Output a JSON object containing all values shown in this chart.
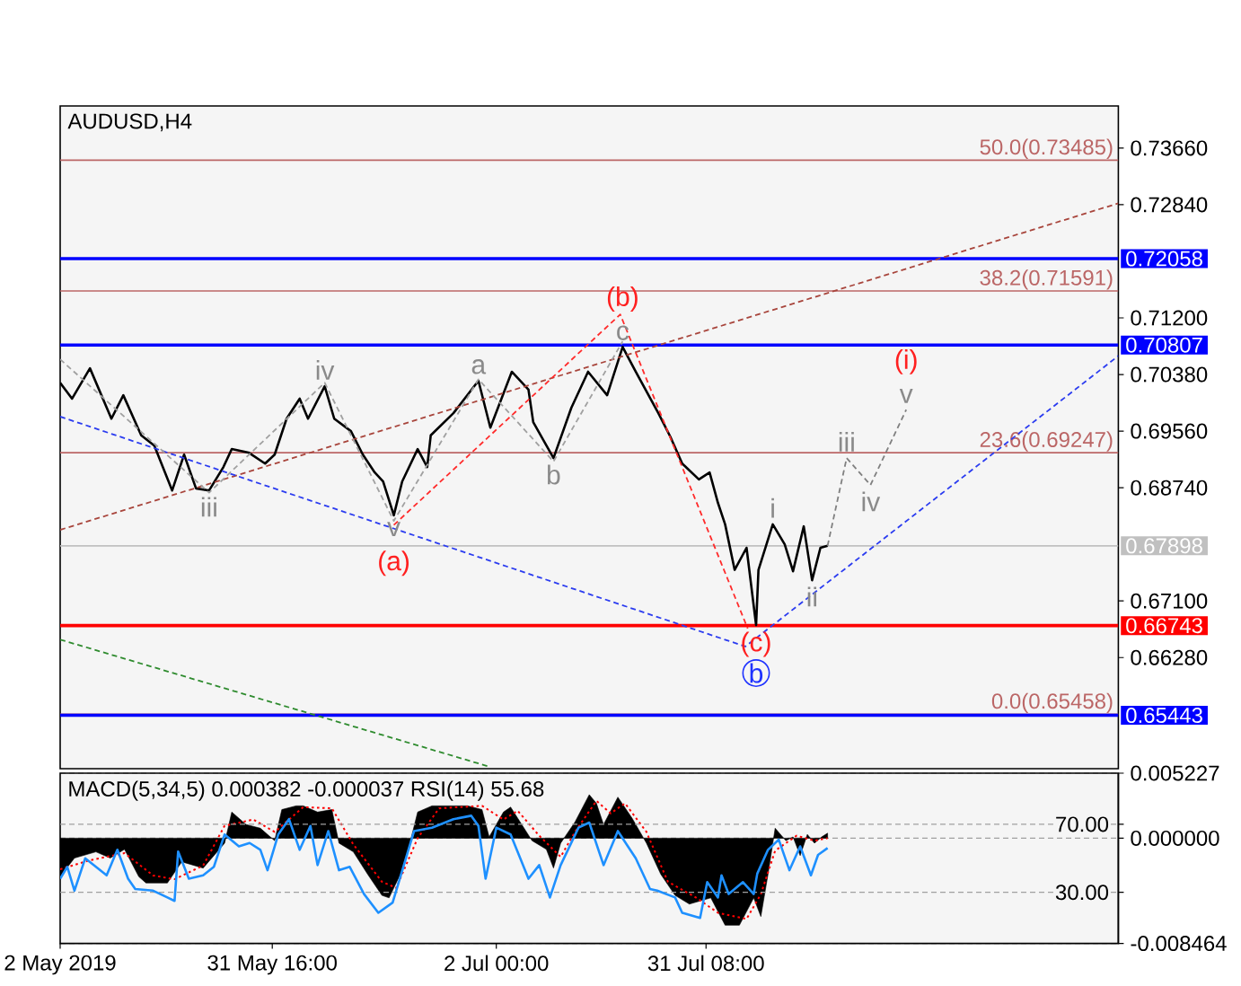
{
  "chart_data": [
    {
      "type": "line",
      "title": "AUDUSD,H4",
      "xlim": [
        "2019-05-02T00:00",
        "2019-09-27T00:00"
      ],
      "ylim": [
        0.6467,
        0.7427
      ],
      "yticks": [
        {
          "value": 0.7366,
          "label": "0.73660"
        },
        {
          "value": 0.7284,
          "label": "0.72840"
        },
        {
          "value": 0.712,
          "label": "0.71200"
        },
        {
          "value": 0.7038,
          "label": "0.70380"
        },
        {
          "value": 0.6956,
          "label": "0.69560"
        },
        {
          "value": 0.6874,
          "label": "0.68740"
        },
        {
          "value": 0.671,
          "label": "0.67100"
        },
        {
          "value": 0.6628,
          "label": "0.66280"
        }
      ],
      "tick_labels": "y",
      "series": [
        {
          "color": "#000000",
          "x": [
            "2019-05-02T00:00",
            "2019-05-03T16:00",
            "2019-05-06T04:00",
            "2019-05-09T04:00",
            "2019-05-10T20:00",
            "2019-05-13T08:00",
            "2019-05-15T04:00",
            "2019-05-17T16:00",
            "2019-05-19T08:00",
            "2019-05-21T00:00",
            "2019-05-22T20:00",
            "2019-05-24T20:00",
            "2019-05-26T00:00",
            "2019-05-28T08:00",
            "2019-05-30T16:00",
            "2019-06-01T00:00",
            "2019-06-02T16:00",
            "2019-06-04T12:00",
            "2019-06-05T16:00",
            "2019-06-08T00:00",
            "2019-06-09T08:00",
            "2019-06-11T16:00",
            "2019-06-13T08:00",
            "2019-06-15T00:00",
            "2019-06-16T04:00",
            "2019-06-17T16:00",
            "2019-06-18T20:00",
            "2019-06-21T00:00",
            "2019-06-22T08:00",
            "2019-06-22T20:00",
            "2019-06-26T00:00",
            "2019-06-29T12:00",
            "2019-07-01T04:00",
            "2019-07-04T04:00",
            "2019-07-06T12:00",
            "2019-07-07T04:00",
            "2019-07-10T00:00",
            "2019-07-12T12:00",
            "2019-07-14T20:00",
            "2019-07-17T12:00",
            "2019-07-19T16:00",
            "2019-07-21T12:00",
            "2019-07-24T16:00",
            "2019-07-26T08:00",
            "2019-07-28T00:00",
            "2019-07-30T08:00",
            "2019-07-31T20:00",
            "2019-08-02T00:00",
            "2019-08-03T00:00",
            "2019-08-04T08:00",
            "2019-08-06T00:00",
            "2019-08-07T08:00",
            "2019-08-07T16:00",
            "2019-08-09T16:00",
            "2019-08-11T08:00",
            "2019-08-12T12:00",
            "2019-08-14T00:00",
            "2019-08-15T04:00",
            "2019-08-16T08:00",
            "2019-08-17T08:00"
          ],
          "values": [
            0.7026,
            0.7003,
            0.7047,
            0.6974,
            0.7008,
            0.695,
            0.6935,
            0.687,
            0.6922,
            0.6873,
            0.687,
            0.6904,
            0.693,
            0.6925,
            0.6909,
            0.6922,
            0.6974,
            0.7003,
            0.6974,
            0.7021,
            0.6974,
            0.6956,
            0.6922,
            0.6896,
            0.6883,
            0.6834,
            0.6883,
            0.693,
            0.6904,
            0.695,
            0.6982,
            0.7029,
            0.6961,
            0.7042,
            0.7016,
            0.6969,
            0.6917,
            0.699,
            0.7042,
            0.7008,
            0.7078,
            0.7042,
            0.6982,
            0.6948,
            0.6909,
            0.6886,
            0.6896,
            0.6852,
            0.6821,
            0.6755,
            0.6787,
            0.6675,
            0.6755,
            0.6821,
            0.6792,
            0.6753,
            0.6818,
            0.674,
            0.6787,
            0.679
          ]
        },
        {
          "color": "#a8453c",
          "line_style": "dashed",
          "x": [
            "2019-05-02T00:00",
            "2019-09-27T00:00"
          ],
          "values": [
            0.6813,
            0.7286
          ]
        },
        {
          "color": "#2b3cf0",
          "line_style": "dashed",
          "x": [
            "2019-05-02T00:00",
            "2019-08-05T20:00",
            "2019-09-27T00:00"
          ],
          "values": [
            0.6977,
            0.6644,
            0.7065
          ]
        },
        {
          "color": "#ff2b2b",
          "line_style": "dashed",
          "x": [
            "2019-06-17T16:00",
            "2019-07-19T08:00",
            "2019-08-06T04:00"
          ],
          "values": [
            0.682,
            0.7125,
            0.667
          ]
        },
        {
          "color": "#a0a0a0",
          "line_style": "dashed",
          "x": [
            "2019-05-02T00:00",
            "2019-05-22T20:00",
            "2019-06-08T00:00",
            "2019-06-17T16:00",
            "2019-06-29T12:00",
            "2019-07-10T00:00",
            "2019-07-19T16:00"
          ],
          "values": [
            0.706,
            0.6867,
            0.7026,
            0.6826,
            0.7031,
            0.6912,
            0.7086
          ]
        },
        {
          "color": "#808080",
          "line_style": "dashed",
          "x": [
            "2019-08-17T08:00",
            "2019-08-20T00:00",
            "2019-08-23T08:00",
            "2019-08-28T08:00"
          ],
          "values": [
            0.679,
            0.6917,
            0.6878,
            0.6987
          ]
        },
        {
          "color": "#2e8b2e",
          "line_style": "dashed",
          "x": [
            "2019-05-02T00:00",
            "2019-07-01T00:00"
          ],
          "values": [
            0.6654,
            0.647
          ]
        }
      ],
      "ref_lines": [
        {
          "axis": "y",
          "value": 0.73485,
          "label": "50.0(0.73485)",
          "color": "#bb6666"
        },
        {
          "axis": "y",
          "value": 0.71591,
          "label": "38.2(0.71591)",
          "color": "#bb6666"
        },
        {
          "axis": "y",
          "value": 0.69247,
          "label": "23.6(0.69247)",
          "color": "#bb6666"
        },
        {
          "axis": "y",
          "value": 0.65458,
          "label": "0.0(0.65458)",
          "color": "#bb6666"
        },
        {
          "axis": "y",
          "value": 0.67898,
          "label": "0.67898",
          "color": "#c0c0c0"
        },
        {
          "axis": "y",
          "value": 0.72058,
          "label": "0.72058",
          "color": "#0000ff"
        },
        {
          "axis": "y",
          "value": 0.70807,
          "label": "0.70807",
          "color": "#0000ff"
        },
        {
          "axis": "y",
          "value": 0.66743,
          "label": "0.66743",
          "color": "#ff0000"
        },
        {
          "axis": "y",
          "value": 0.65443,
          "label": "0.65443",
          "color": "#0000ff"
        }
      ],
      "annotations": [
        {
          "text": "iii",
          "x": "2019-05-22T20:00",
          "y": 0.687
        },
        {
          "text": "iv",
          "x": "2019-06-08T00:00",
          "y": 0.7021
        },
        {
          "text": "v",
          "x": "2019-06-17T16:00",
          "y": 0.6834
        },
        {
          "text": "(a)",
          "x": "2019-06-17T16:00",
          "y": 0.6834
        },
        {
          "text": "a",
          "x": "2019-06-29T12:00",
          "y": 0.7029
        },
        {
          "text": "b",
          "x": "2019-07-10T00:00",
          "y": 0.6917
        },
        {
          "text": "c",
          "x": "2019-07-19T16:00",
          "y": 0.7078
        },
        {
          "text": "(b)",
          "x": "2019-07-19T16:00",
          "y": 0.7078
        },
        {
          "text": "i",
          "x": "2019-08-09T16:00",
          "y": 0.6821
        },
        {
          "text": "ii",
          "x": "2019-08-15T04:00",
          "y": 0.674
        },
        {
          "text": "(c)",
          "x": "2019-08-07T08:00",
          "y": 0.6675
        },
        {
          "text": "b",
          "x": "2019-08-07T08:00",
          "y": 0.6675
        },
        {
          "text": "iii",
          "x": "2019-08-20T00:00",
          "y": 0.6917
        },
        {
          "text": "iv",
          "x": "2019-08-23T08:00",
          "y": 0.6878
        },
        {
          "text": "v",
          "x": "2019-08-28T08:00",
          "y": 0.6987
        },
        {
          "text": "(i)",
          "x": "2019-08-28T08:00",
          "y": 0.6987
        }
      ]
    },
    {
      "type": "line",
      "title": "MACD(5,34,5) 0.000382 -0.000037 RSI(14) 55.68",
      "xlim": [
        "2019-05-02T00:00",
        "2019-09-27T00:00"
      ],
      "xticks": [
        {
          "value": "2019-05-02T00:00",
          "label": "2 May 2019"
        },
        {
          "value": "2019-05-31T16:00",
          "label": "31 May 16:00"
        },
        {
          "value": "2019-07-02T00:00",
          "label": "2 Jul 00:00"
        },
        {
          "value": "2019-07-31T08:00",
          "label": "31 Jul 08:00"
        }
      ],
      "ylim": [
        -0.008464,
        0.005227
      ],
      "yticks": [
        0.005227,
        {
          "value": 0,
          "label": "0.000000"
        },
        -0.008464
      ],
      "y2lim": [
        0,
        100
      ],
      "y2ticks": [
        {
          "value": 70,
          "label": "70.00"
        },
        {
          "value": 30,
          "label": "30.00"
        }
      ],
      "grid": "y",
      "series": [
        {
          "type": "area",
          "color": "#000000",
          "x": [
            "2019-05-02",
            "2019-05-04",
            "2019-05-07",
            "2019-05-09",
            "2019-05-11",
            "2019-05-13",
            "2019-05-14",
            "2019-05-17",
            "2019-05-19",
            "2019-05-22",
            "2019-05-25",
            "2019-05-26",
            "2019-05-28",
            "2019-05-30",
            "2019-06-01",
            "2019-06-02",
            "2019-06-04",
            "2019-06-05",
            "2019-06-07",
            "2019-06-09",
            "2019-06-10",
            "2019-06-12",
            "2019-06-14",
            "2019-06-16",
            "2019-06-17",
            "2019-06-19",
            "2019-06-20",
            "2019-06-21",
            "2019-06-23",
            "2019-06-26",
            "2019-06-28",
            "2019-06-30",
            "2019-07-01",
            "2019-07-03",
            "2019-07-04",
            "2019-07-05",
            "2019-07-07",
            "2019-07-09",
            "2019-07-10",
            "2019-07-11",
            "2019-07-13",
            "2019-07-15",
            "2019-07-16",
            "2019-07-17",
            "2019-07-19",
            "2019-07-21",
            "2019-07-23",
            "2019-07-25",
            "2019-07-27",
            "2019-07-29",
            "2019-08-01",
            "2019-08-03",
            "2019-08-05",
            "2019-08-07",
            "2019-08-08",
            "2019-08-09",
            "2019-08-10",
            "2019-08-11T12:00",
            "2019-08-12T12:00",
            "2019-08-13T12:00",
            "2019-08-14T12:00",
            "2019-08-15T12:00",
            "2019-08-16T12:00",
            "2019-08-17T08:00"
          ],
          "values": [
            -0.0031,
            -0.0016,
            -0.0011,
            -0.0016,
            -0.0009,
            -0.0031,
            -0.0036,
            -0.0036,
            -0.0019,
            -0.0024,
            -0.0004,
            0.0021,
            0.0011,
            0.0008,
            -0.0002,
            0.0023,
            0.0026,
            0.0026,
            0.0021,
            0.0023,
            -0.0004,
            -0.0011,
            -0.0029,
            -0.0046,
            -0.0048,
            -0.0024,
            -0.0002,
            0.0021,
            0.0026,
            0.0026,
            0.0026,
            0.0023,
            0.0001,
            0.0021,
            0.0025,
            0.0016,
            -0.0002,
            -0.0009,
            -0.0024,
            -0.0004,
            0.0013,
            0.0035,
            0.0028,
            0.0011,
            0.0033,
            0.0016,
            -0.0004,
            -0.0029,
            -0.0046,
            -0.0053,
            -0.0048,
            -0.007,
            -0.007,
            -0.0048,
            -0.0063,
            -0.0029,
            0.0008,
            -0.0002,
            0.0001,
            -0.0014,
            0.0003,
            -0.0004,
            0.0001,
            0.0004
          ]
        },
        {
          "type": "line",
          "color": "#ff0000",
          "line_style": "dotted",
          "x": [
            "2019-05-02",
            "2019-05-06",
            "2019-05-11",
            "2019-05-15",
            "2019-05-18",
            "2019-05-22",
            "2019-05-25",
            "2019-05-29",
            "2019-06-01",
            "2019-06-05",
            "2019-06-09",
            "2019-06-12",
            "2019-06-16",
            "2019-06-18",
            "2019-06-21",
            "2019-06-24",
            "2019-06-30",
            "2019-07-03",
            "2019-07-05",
            "2019-07-08",
            "2019-07-11",
            "2019-07-13",
            "2019-07-16",
            "2019-07-18",
            "2019-07-20",
            "2019-07-23",
            "2019-07-26",
            "2019-07-30",
            "2019-08-02",
            "2019-08-06",
            "2019-08-08",
            "2019-08-10",
            "2019-08-13",
            "2019-08-15T12:00",
            "2019-08-17T08:00"
          ],
          "values": [
            -0.0025,
            -0.0018,
            -0.0012,
            -0.003,
            -0.0033,
            -0.0022,
            0.001,
            0.0015,
            0.0005,
            0.0025,
            0.0024,
            -0.0005,
            -0.0035,
            -0.004,
            0.0,
            0.0024,
            0.0026,
            0.0015,
            0.0022,
            0.0002,
            -0.0015,
            0.0005,
            0.003,
            0.002,
            0.0028,
            0.0005,
            -0.0035,
            -0.0048,
            -0.006,
            -0.0065,
            -0.0045,
            -0.001,
            0.0002,
            -0.0002,
            0.0
          ]
        },
        {
          "type": "line",
          "axis": "y2",
          "color": "#1e90ff",
          "x": [
            "2019-05-02",
            "2019-05-03",
            "2019-05-04",
            "2019-05-05T12:00",
            "2019-05-07",
            "2019-05-08T12:00",
            "2019-05-10",
            "2019-05-11T12:00",
            "2019-05-12T12:00",
            "2019-05-15",
            "2019-05-17",
            "2019-05-18",
            "2019-05-18T12:00",
            "2019-05-20",
            "2019-05-22",
            "2019-05-23T12:00",
            "2019-05-25",
            "2019-05-27",
            "2019-05-28T12:00",
            "2019-05-30",
            "2019-05-31",
            "2019-06-01T12:00",
            "2019-06-03",
            "2019-06-04T12:00",
            "2019-06-06",
            "2019-06-07",
            "2019-06-08T12:00",
            "2019-06-10",
            "2019-06-11T12:00",
            "2019-06-13T12:00",
            "2019-06-15T12:00",
            "2019-06-17T12:00",
            "2019-06-19",
            "2019-06-20T12:00",
            "2019-06-23",
            "2019-06-26",
            "2019-06-28T12:00",
            "2019-06-29T12:00",
            "2019-06-30T12:00",
            "2019-07-02",
            "2019-07-04",
            "2019-07-06T12:00",
            "2019-07-08",
            "2019-07-09T12:00",
            "2019-07-11",
            "2019-07-13T12:00",
            "2019-07-15",
            "2019-07-17",
            "2019-07-19",
            "2019-07-21T12:00",
            "2019-07-23T12:00",
            "2019-07-24T12:00",
            "2019-07-27",
            "2019-07-28",
            "2019-07-30T12:00",
            "2019-07-31T12:00",
            "2019-08-02",
            "2019-08-02T12:00",
            "2019-08-03T12:00",
            "2019-08-05T12:00",
            "2019-08-07",
            "2019-08-07T12:00",
            "2019-08-09",
            "2019-08-10T12:00",
            "2019-08-12",
            "2019-08-13T12:00",
            "2019-08-15",
            "2019-08-16",
            "2019-08-17T08:00"
          ],
          "values": [
            38,
            45,
            31,
            50,
            45,
            40,
            55,
            38,
            32,
            31,
            27,
            25,
            54,
            38,
            40,
            45,
            64,
            57,
            59,
            55,
            43,
            64,
            73,
            55,
            69,
            46,
            66,
            43,
            45,
            29,
            18,
            24,
            45,
            66,
            68,
            73,
            75,
            69,
            38,
            68,
            64,
            38,
            46,
            27,
            46,
            68,
            71,
            46,
            66,
            50,
            32,
            31,
            27,
            18,
            15,
            36,
            27,
            40,
            29,
            36,
            29,
            41,
            55,
            61,
            43,
            57,
            40,
            52,
            56
          ]
        }
      ]
    }
  ]
}
